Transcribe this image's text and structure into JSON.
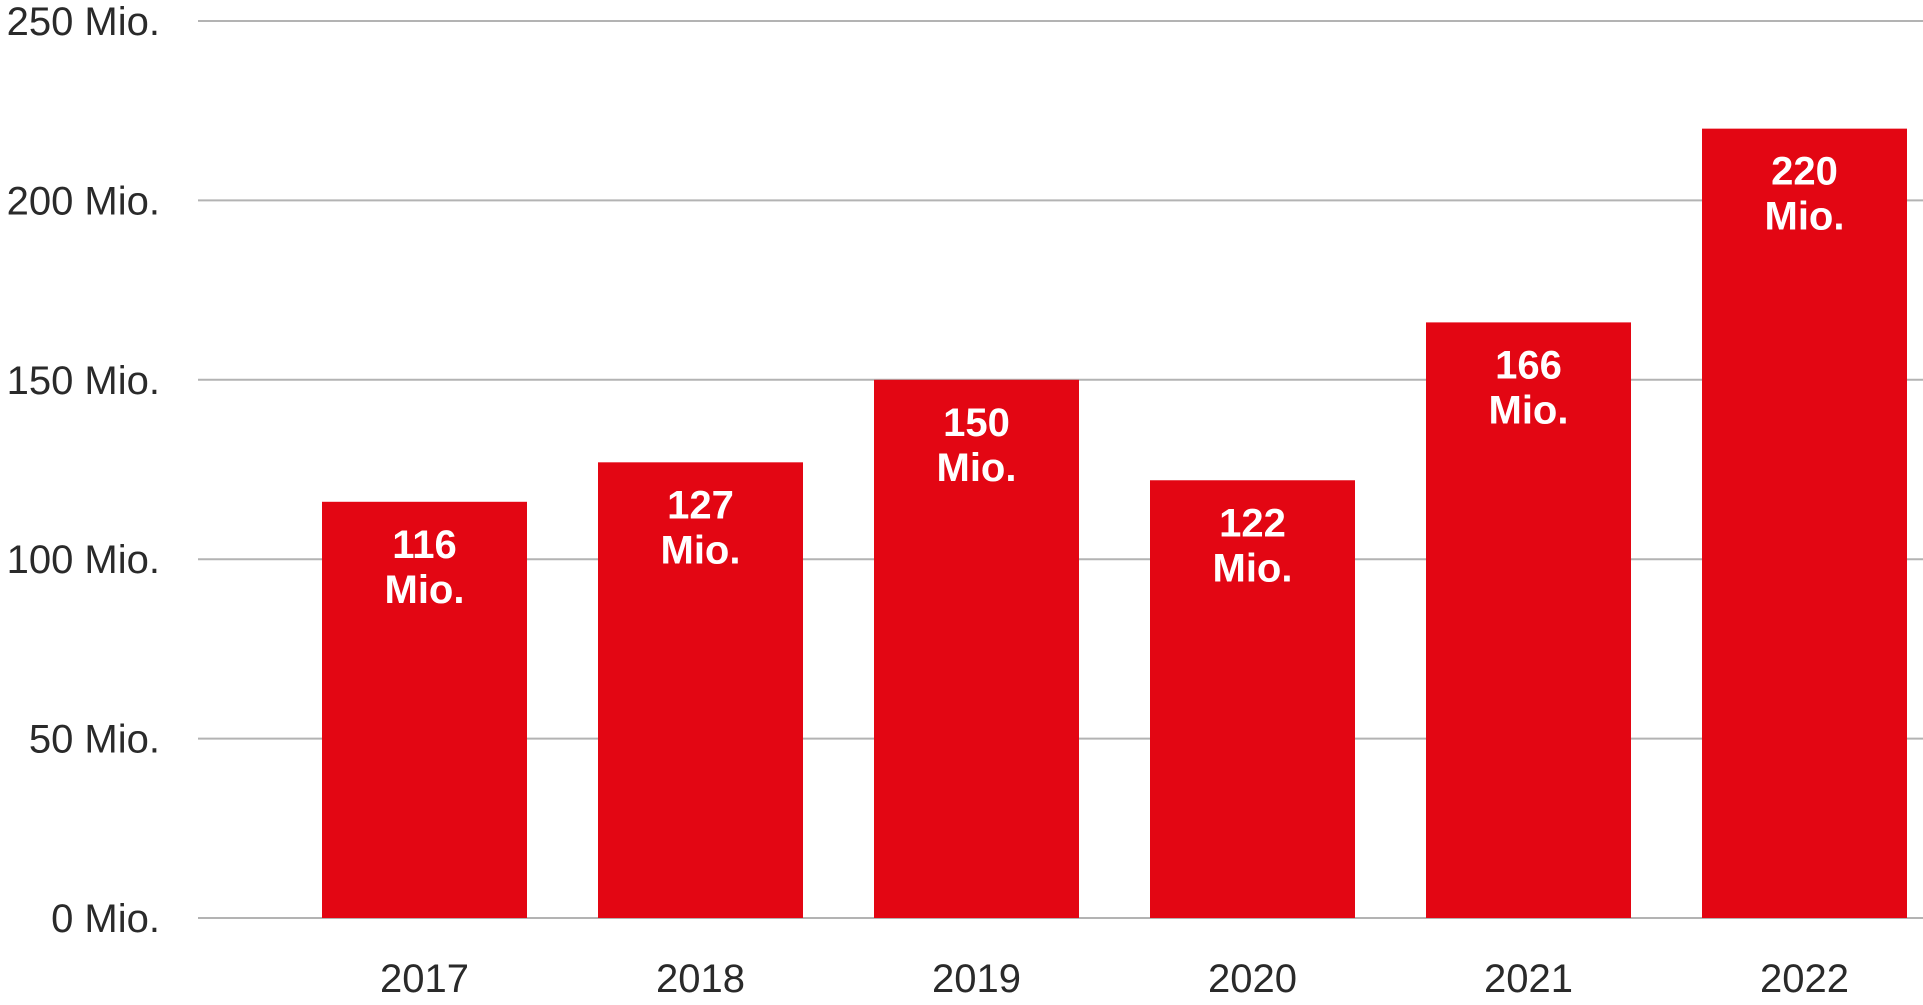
{
  "chart_data": {
    "type": "bar",
    "categories": [
      "2017",
      "2018",
      "2019",
      "2020",
      "2021",
      "2022"
    ],
    "values": [
      116,
      127,
      150,
      122,
      166,
      220
    ],
    "data_labels": [
      [
        "116",
        "Mio."
      ],
      [
        "127",
        "Mio."
      ],
      [
        "150",
        "Mio."
      ],
      [
        "122",
        "Mio."
      ],
      [
        "166",
        "Mio."
      ],
      [
        "220",
        "Mio."
      ]
    ],
    "y_ticks": [
      0,
      50,
      100,
      150,
      200,
      250
    ],
    "y_tick_labels": [
      "0 Mio.",
      "50 Mio.",
      "100 Mio.",
      "150 Mio.",
      "200 Mio.",
      "250 Mio."
    ],
    "ylim": [
      0,
      250
    ],
    "grid": true,
    "legend": "none",
    "bar_color": "#e30613",
    "grid_color": "#b3b3b3"
  }
}
